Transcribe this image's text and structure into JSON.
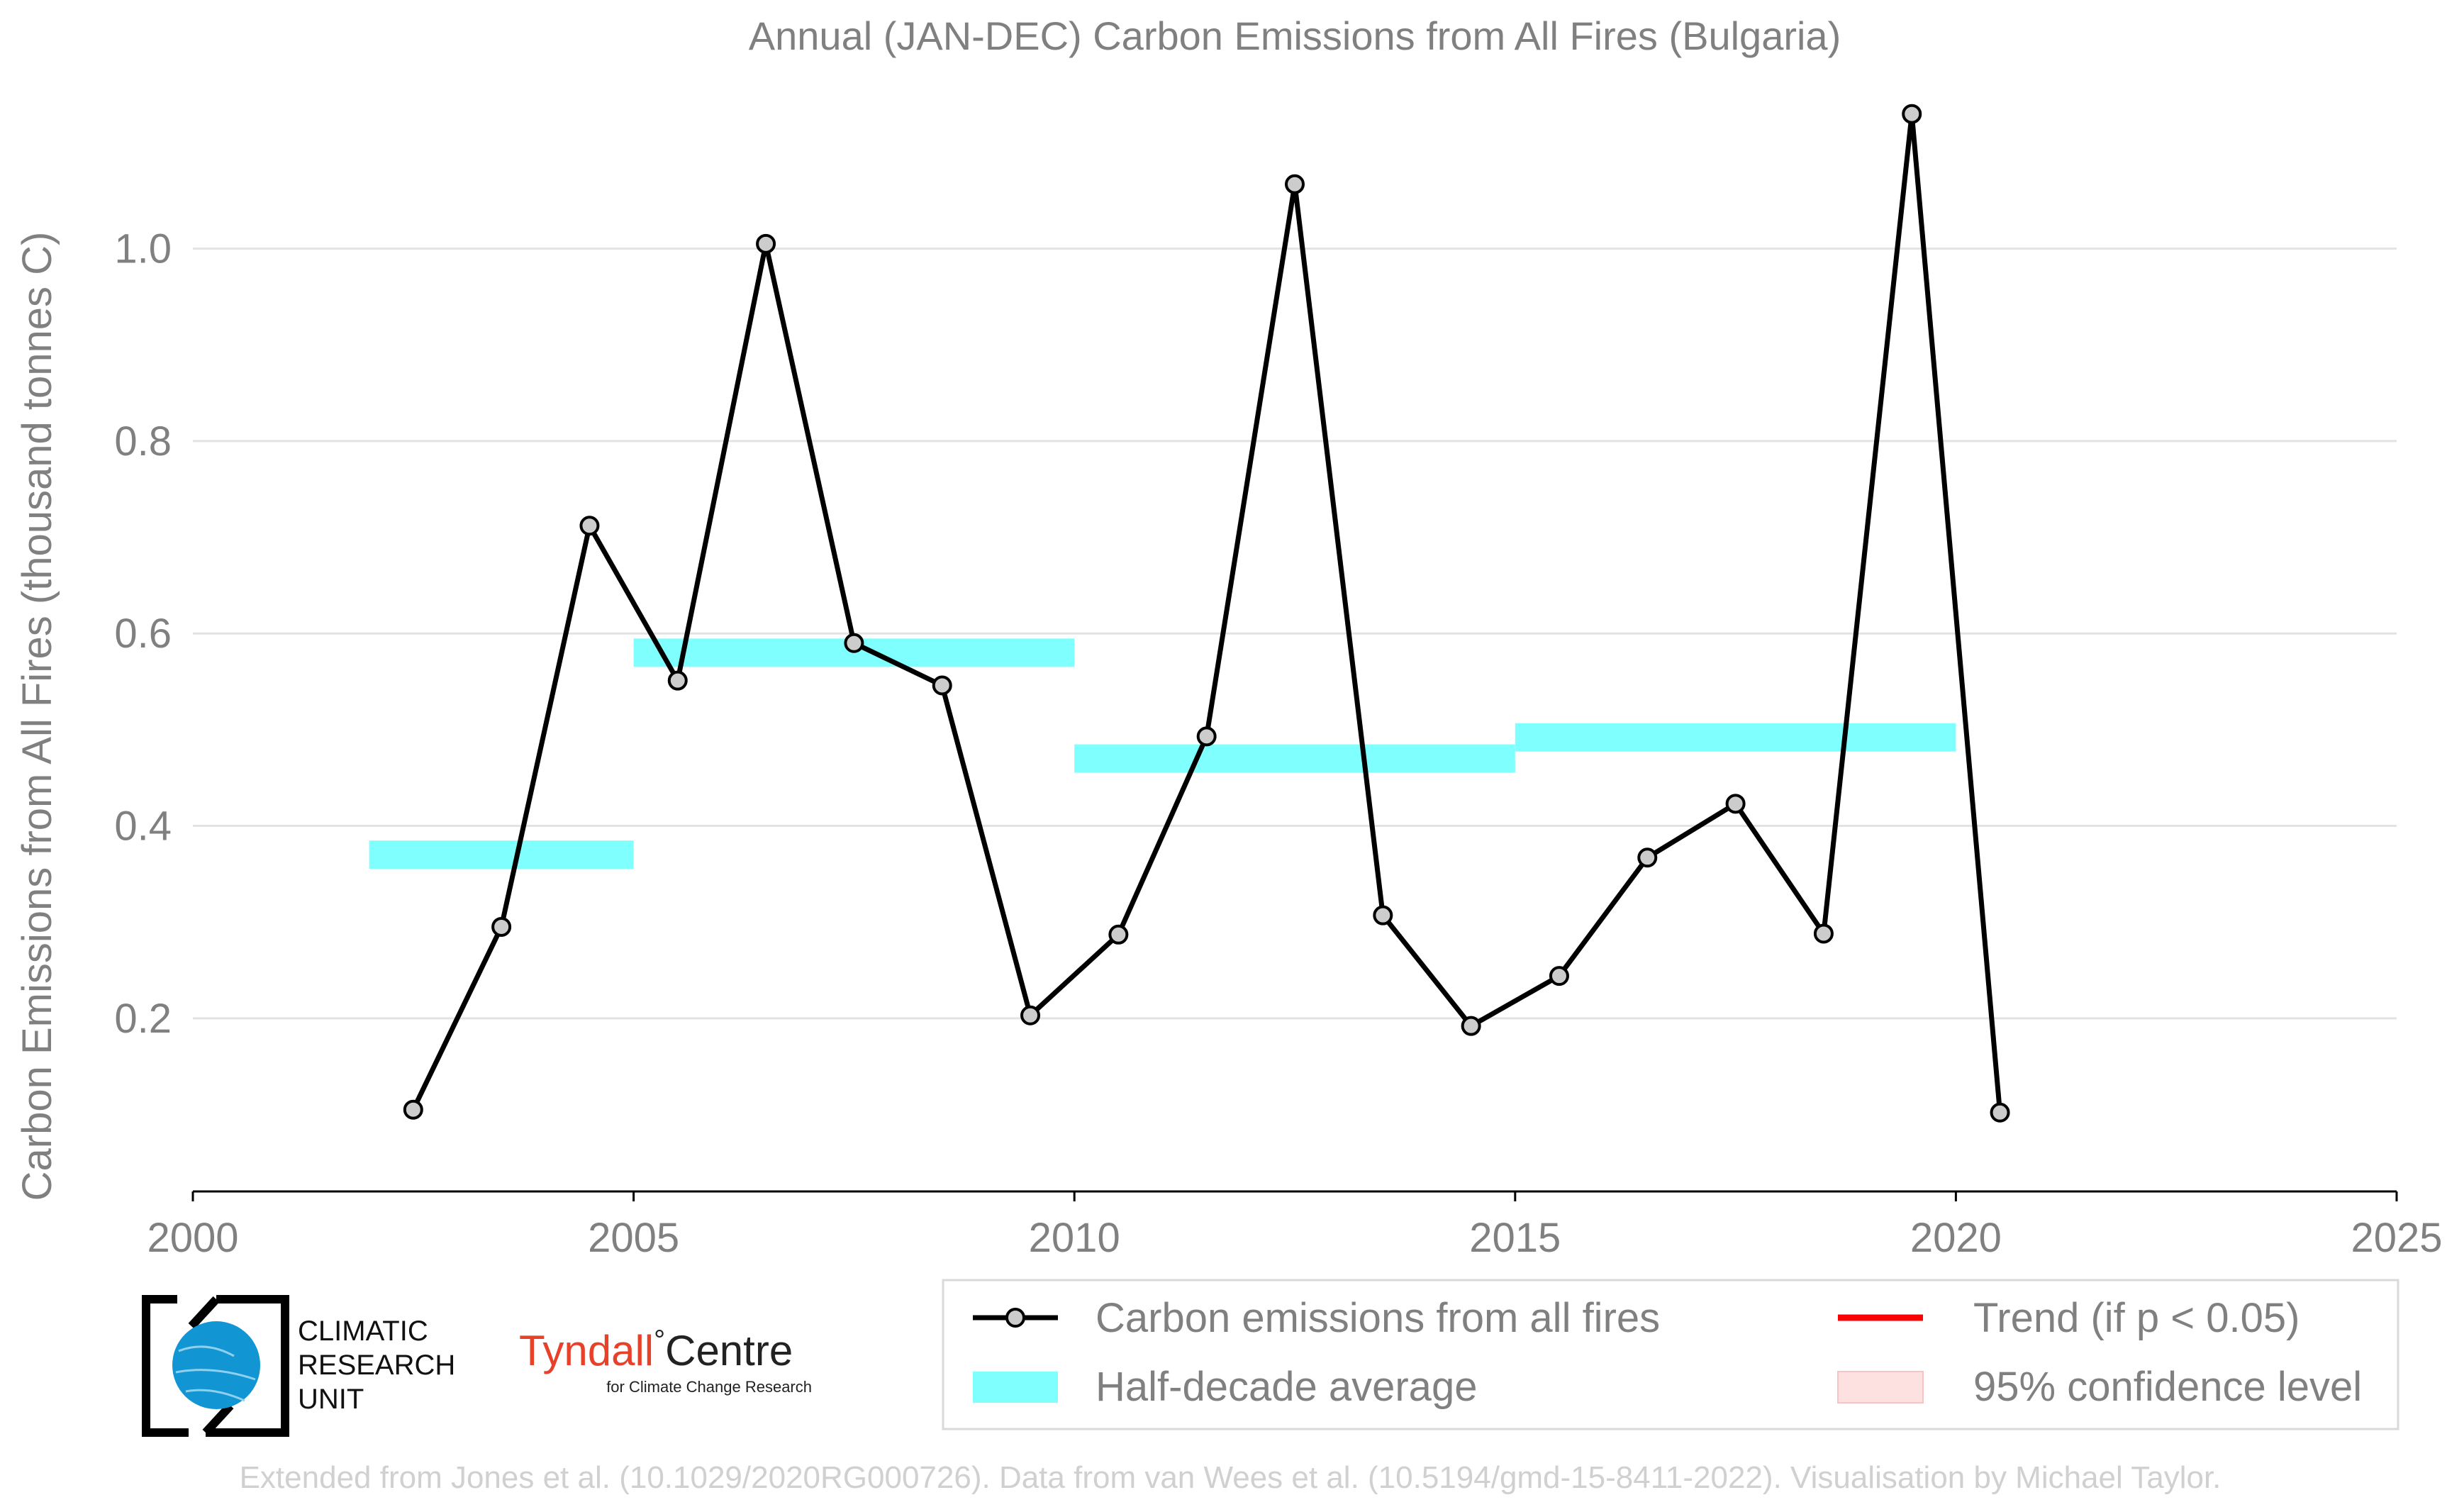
{
  "chart_data": {
    "type": "line",
    "title": "Annual (JAN-DEC) Carbon Emissions from All Fires (Bulgaria)",
    "xlabel": "",
    "ylabel": "Carbon Emissions from All Fires (thousand tonnes C)",
    "xlim": [
      2000,
      2025
    ],
    "ylim": [
      0.02,
      1.17
    ],
    "x_ticks": [
      "2000",
      "2005",
      "2010",
      "2015",
      "2020",
      "2025"
    ],
    "y_ticks": [
      "0.2",
      "0.4",
      "0.6",
      "0.8",
      "1.0"
    ],
    "grid": "horizontal",
    "legend_position": "bottom-right",
    "series": [
      {
        "name": "Carbon emissions from all fires",
        "color": "#000000",
        "marker_color": "#cccccc",
        "x": [
          2002.5,
          2003.5,
          2004.5,
          2005.5,
          2006.5,
          2007.5,
          2008.5,
          2009.5,
          2010.5,
          2011.5,
          2012.5,
          2013.5,
          2014.5,
          2015.5,
          2016.5,
          2017.5,
          2018.5,
          2019.5,
          2020.5
        ],
        "y": [
          0.105,
          0.295,
          0.712,
          0.551,
          1.005,
          0.59,
          0.546,
          0.203,
          0.287,
          0.493,
          1.067,
          0.307,
          0.192,
          0.244,
          0.367,
          0.423,
          0.288,
          1.14,
          0.102
        ]
      },
      {
        "name": "Half-decade average",
        "color": "#80ffff",
        "segments": [
          {
            "x_start": 2002,
            "x_end": 2005,
            "y": 0.37
          },
          {
            "x_start": 2005,
            "x_end": 2010,
            "y": 0.58
          },
          {
            "x_start": 2010,
            "x_end": 2015,
            "y": 0.47
          },
          {
            "x_start": 2015,
            "x_end": 2020,
            "y": 0.492
          }
        ]
      }
    ],
    "legend": [
      {
        "label": "Carbon emissions from all fires",
        "kind": "line-marker",
        "color": "#000000"
      },
      {
        "label": "Trend (if p < 0.05)",
        "kind": "line",
        "color": "#ff0000"
      },
      {
        "label": "Half-decade average",
        "kind": "patch",
        "color": "#80ffff"
      },
      {
        "label": "95% confidence level",
        "kind": "patch",
        "color": "#fde0e0"
      }
    ]
  },
  "logos": {
    "cru_lines": [
      "CLIMATIC",
      "RESEARCH",
      "UNIT"
    ],
    "tyndall_name": "Tyndall",
    "tyndall_degree": "°",
    "tyndall_centre": "Centre",
    "tyndall_sub": "for Climate Change Research"
  },
  "footer": {
    "credit": "Extended from Jones et al. (10.1029/2020RG000726). Data from van Wees et al. (10.5194/gmd-15-8411-2022). Visualisation by Michael Taylor."
  },
  "colors": {
    "text_gray": "#808080",
    "grid": "#e3e3e3",
    "axis": "#000000",
    "tyndall_red": "#e8412a",
    "cru_blue": "#1196d3",
    "footer_text": "#d0d0d0"
  }
}
